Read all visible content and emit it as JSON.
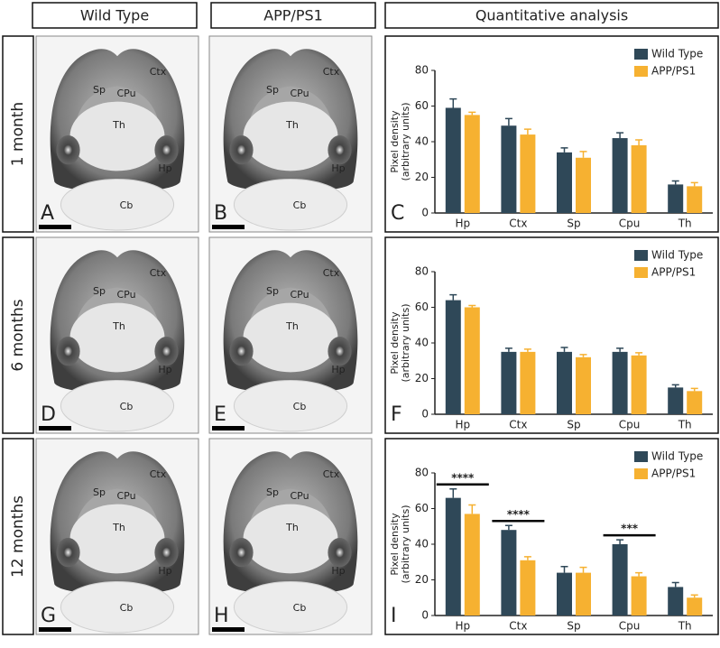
{
  "columns": [
    "Wild Type",
    "APP/PS1",
    "Quantitative analysis"
  ],
  "rows": [
    "1 month",
    "6 months",
    "12 months"
  ],
  "images": [
    {
      "letter": "A",
      "regions": [
        "Ctx",
        "Sp",
        "CPu",
        "Th",
        "Hp",
        "Cb"
      ]
    },
    {
      "letter": "B",
      "regions": [
        "Ctx",
        "Sp",
        "CPu",
        "Th",
        "Hp",
        "Cb"
      ]
    },
    {
      "letter": "D",
      "regions": [
        "Ctx",
        "Sp",
        "CPu",
        "Th",
        "Hp",
        "Cb"
      ]
    },
    {
      "letter": "E",
      "regions": [
        "Ctx",
        "Sp",
        "CPu",
        "Th",
        "Hp",
        "Cb"
      ]
    },
    {
      "letter": "G",
      "regions": [
        "Ctx",
        "Sp",
        "CPu",
        "Th",
        "Hp",
        "Cb"
      ]
    },
    {
      "letter": "H",
      "regions": [
        "Ctx",
        "Sp",
        "CPu",
        "Th",
        "Hp",
        "Cb"
      ]
    }
  ],
  "chart_data": [
    {
      "type": "bar",
      "panel_letter": "C",
      "y_label": [
        "Pixel density",
        "(arbitrary units)"
      ],
      "categories": [
        "Hp",
        "Ctx",
        "Sp",
        "Cpu",
        "Th"
      ],
      "series": [
        {
          "name": "Wild Type",
          "color": "#2f4858",
          "values": [
            59,
            49,
            34,
            42,
            16
          ],
          "errors": [
            5,
            4,
            2.5,
            3,
            2
          ]
        },
        {
          "name": "APP/PS1",
          "color": "#f6b131",
          "values": [
            55,
            44,
            31,
            38,
            15
          ],
          "errors": [
            1.5,
            3,
            3.5,
            3,
            2
          ]
        }
      ],
      "ylim": [
        0,
        80
      ],
      "yticks": [
        0,
        20,
        40,
        60,
        80
      ],
      "annotations": []
    },
    {
      "type": "bar",
      "panel_letter": "F",
      "y_label": [
        "Pixel density",
        "(arbitrary units)"
      ],
      "categories": [
        "Hp",
        "Ctx",
        "Sp",
        "Cpu",
        "Th"
      ],
      "series": [
        {
          "name": "Wild Type",
          "color": "#2f4858",
          "values": [
            64,
            35,
            35,
            35,
            15
          ],
          "errors": [
            3,
            2,
            2.5,
            2,
            1.5
          ]
        },
        {
          "name": "APP/PS1",
          "color": "#f6b131",
          "values": [
            60,
            35,
            32,
            33,
            13
          ],
          "errors": [
            1,
            1.5,
            1.5,
            1.5,
            1.5
          ]
        }
      ],
      "ylim": [
        0,
        80
      ],
      "yticks": [
        0,
        20,
        40,
        60,
        80
      ],
      "annotations": []
    },
    {
      "type": "bar",
      "panel_letter": "I",
      "y_label": [
        "Pixel density",
        "(arbitrary units)"
      ],
      "categories": [
        "Hp",
        "Ctx",
        "Sp",
        "Cpu",
        "Th"
      ],
      "series": [
        {
          "name": "Wild Type",
          "color": "#2f4858",
          "values": [
            66,
            48,
            24,
            40,
            16
          ],
          "errors": [
            5,
            2.5,
            3.5,
            2.5,
            2.5
          ]
        },
        {
          "name": "APP/PS1",
          "color": "#f6b131",
          "values": [
            57,
            31,
            24,
            22,
            10
          ],
          "errors": [
            5,
            2,
            3,
            2,
            1.5
          ]
        }
      ],
      "ylim": [
        0,
        80
      ],
      "yticks": [
        0,
        20,
        40,
        60,
        80
      ],
      "annotations": [
        {
          "text": "****",
          "x": "Hp"
        },
        {
          "text": "****",
          "x": "Ctx"
        },
        {
          "text": "***",
          "x": "Cpu"
        }
      ]
    }
  ]
}
